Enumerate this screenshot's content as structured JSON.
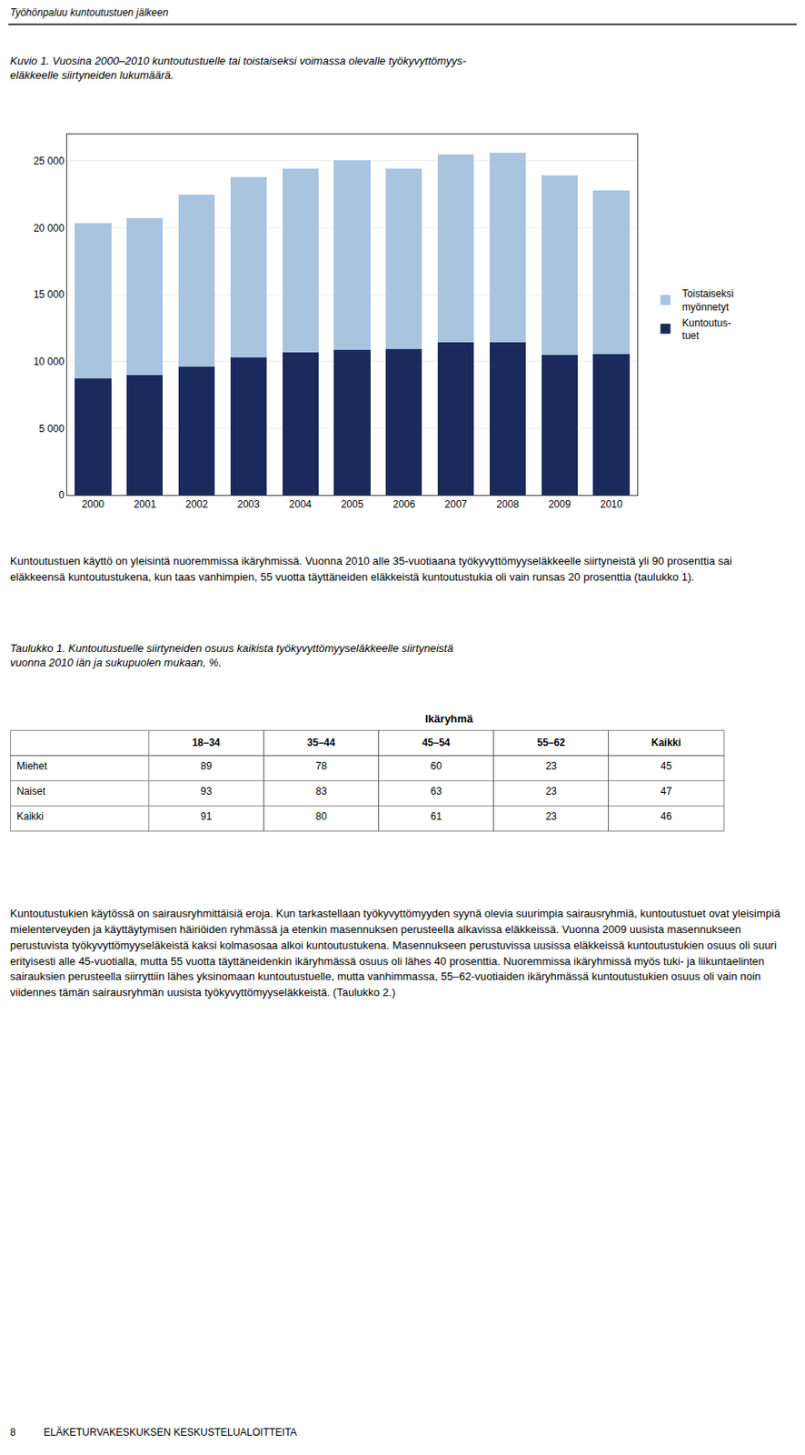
{
  "chart_data": [
    {
      "type": "bar",
      "title": "Kuvio 1. Vuosina 2000–2010 kuntoutustuelle tai toistaiseksi voimassa olevalle työkyvyttömyys-\neläkkeelle siirtyneiden lukumäärä.",
      "categories": [
        "2000",
        "2001",
        "2002",
        "2003",
        "2004",
        "2005",
        "2006",
        "2007",
        "2008",
        "2009",
        "2010"
      ],
      "series": [
        {
          "name": "Kuntoutus-\ntuet",
          "color": "#1b2a5c",
          "values": [
            8700,
            8950,
            9600,
            10300,
            10650,
            10850,
            10900,
            11400,
            11400,
            10500,
            10550
          ]
        },
        {
          "name": "Toistaiseksi\nmyönnetyt",
          "color": "#a8c4df",
          "values": [
            11650,
            11800,
            12850,
            13500,
            13800,
            14200,
            13500,
            14100,
            14250,
            13400,
            12250
          ]
        }
      ],
      "stacked": true,
      "ylim": [
        0,
        27000
      ],
      "yticks": [
        0,
        {
          "value": 5000,
          "label": "5 000"
        },
        {
          "value": 10000,
          "label": "10 000"
        },
        {
          "value": 15000,
          "label": "15 000"
        },
        {
          "value": 20000,
          "label": "20 000"
        },
        {
          "value": 25000,
          "label": "25 000"
        }
      ],
      "grid": true,
      "legend": "right",
      "annotations": [
        "Työhönpaluu kuntoutustuen jälkeen",
        "Kuntoutustuen käyttö on yleisintä nuoremmissa ikäryhmissä. Vuonna 2010 alle 35-vuotiaana työkyvyttömyyseläkkeelle siirtyneistä yli 90 prosenttia sai eläkkeensä kuntoutustukena, kun taas vanhimpien, 55 vuotta täyttäneiden eläkkeistä kuntoutustukia oli vain runsas 20 prosenttia (taulukko 1).",
        "Kuntoutustukien käytössä on sairausryhmittäisiä eroja. Kun tarkastellaan työkyvyttömyyden syynä olevia suurimpia sairausryhmiä, kuntoutustuet ovat yleisimpiä mielenterveyden ja käyttäytymisen häiriöiden ryhmässä ja etenkin masennuksen perusteella alkavissa eläkkeissä. Vuonna 2009 uusista masennukseen perustuvista työkyvyttömyyseläkeistä kaksi kolmasosaa alkoi kuntoutustukena. Masennukseen perustuvissa uusissa eläkkeissä kuntoutustukien osuus oli suuri erityisesti alle 45-vuotialla, mutta 55 vuotta täyttäneidenkin ikäryhmässä osuus oli lähes 40 prosenttia. Nuoremmissa ikäryhmissä myös tuki- ja liikuntaelinten sairauksien perusteella siirryttiin lähes yksinomaan kuntoutustuelle, mutta vanhimmassa, 55–62-vuotiaiden ikäryhmässä kuntoutustukien osuus oli vain noin viidennes tämän sairausryhmän uusista työkyvyttömyyseläkkeistä. (Taulukko 2.)",
        "8          ELÄKETURVAKESKUKSEN KESKUSTELUALOITTEITA"
      ]
    },
    {
      "type": "table",
      "title": "Taulukko 1. Kuntoutustuelle siirtyneiden osuus kaikista työkyvyttömyyseläkkeelle siirtyneistä\nvuonna 2010 iän ja sukupuolen mukaan, %.",
      "categories": [
        "Miehet",
        "Naiset",
        "Kaikki"
      ],
      "series": [
        {
          "name": "18–34",
          "values": [
            89,
            93,
            91
          ]
        },
        {
          "name": "35–44",
          "values": [
            78,
            83,
            80
          ]
        },
        {
          "name": "45–54",
          "values": [
            60,
            63,
            61
          ]
        },
        {
          "name": "55–62",
          "values": [
            23,
            23,
            23
          ]
        },
        {
          "name": "Kaikki",
          "values": [
            45,
            47,
            46
          ]
        }
      ],
      "annotations": [
        "Ikäryhmä"
      ]
    }
  ]
}
